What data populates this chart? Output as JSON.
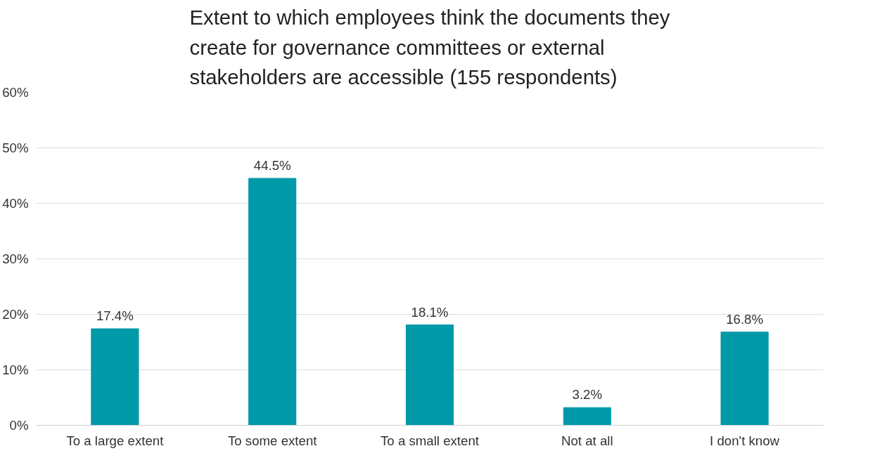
{
  "chart_data": {
    "type": "bar",
    "title": "Extent to which employees think the documents they create for governance committees or external stakeholders are accessible (155 respondents)",
    "categories": [
      "To a large extent",
      "To some extent",
      "To a small extent",
      "Not at all",
      "I don't know"
    ],
    "values": [
      17.4,
      44.5,
      18.1,
      3.2,
      16.8
    ],
    "value_labels": [
      "17.4%",
      "44.5%",
      "18.1%",
      "3.2%",
      "16.8%"
    ],
    "color": "#0099a8",
    "ylim": [
      0,
      60
    ],
    "yticks": [
      {
        "value": 0,
        "label": "0%"
      },
      {
        "value": 10,
        "label": "10%"
      },
      {
        "value": 20,
        "label": "20%"
      },
      {
        "value": 30,
        "label": "30%"
      },
      {
        "value": 40,
        "label": "40%"
      },
      {
        "value": 50,
        "label": "50%"
      },
      {
        "value": 60,
        "label": "60%"
      }
    ],
    "grid": "y"
  }
}
